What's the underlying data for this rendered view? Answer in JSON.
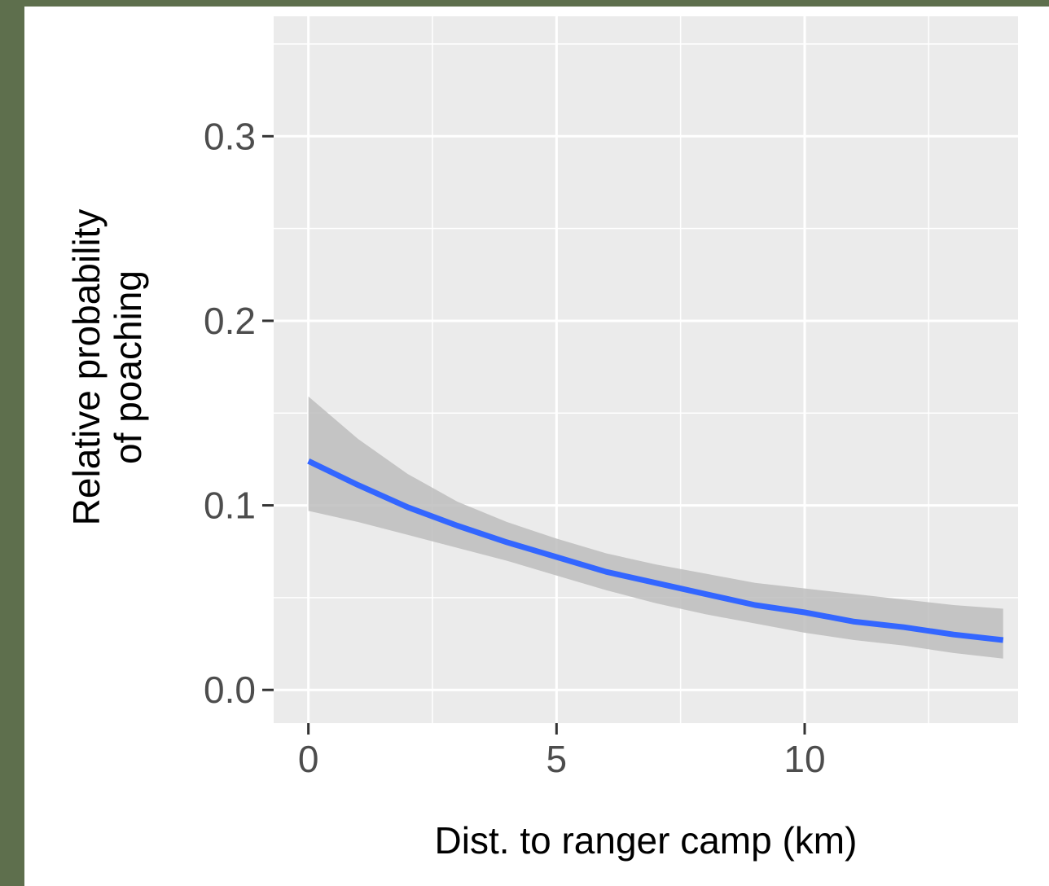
{
  "chart_data": {
    "type": "line",
    "xlabel": "Dist. to ranger camp (km)",
    "ylabel_lines": [
      "Relative probability",
      "of poaching"
    ],
    "xlim": [
      -0.7,
      14.3
    ],
    "ylim": [
      -0.018,
      0.365
    ],
    "x_ticks": [
      0,
      5,
      10
    ],
    "x_tick_labels": [
      "0",
      "5",
      "10"
    ],
    "y_ticks": [
      0.0,
      0.1,
      0.2,
      0.3
    ],
    "y_tick_labels": [
      "0.0",
      "0.1",
      "0.2",
      "0.3"
    ],
    "grid": true,
    "panel_color": "#ebebeb",
    "series": [
      {
        "line_color": "#3366ff",
        "ribbon_color": "#bdbdbd",
        "x": [
          0,
          1,
          2,
          3,
          4,
          5,
          6,
          7,
          8,
          9,
          10,
          11,
          12,
          13,
          14
        ],
        "y": [
          0.124,
          0.111,
          0.099,
          0.089,
          0.08,
          0.072,
          0.064,
          0.058,
          0.052,
          0.046,
          0.042,
          0.037,
          0.034,
          0.03,
          0.027
        ],
        "lower": [
          0.097,
          0.091,
          0.084,
          0.077,
          0.07,
          0.062,
          0.054,
          0.047,
          0.041,
          0.036,
          0.031,
          0.027,
          0.024,
          0.02,
          0.017
        ],
        "upper": [
          0.159,
          0.136,
          0.117,
          0.102,
          0.091,
          0.082,
          0.074,
          0.068,
          0.063,
          0.058,
          0.055,
          0.052,
          0.049,
          0.046,
          0.044
        ]
      }
    ]
  }
}
